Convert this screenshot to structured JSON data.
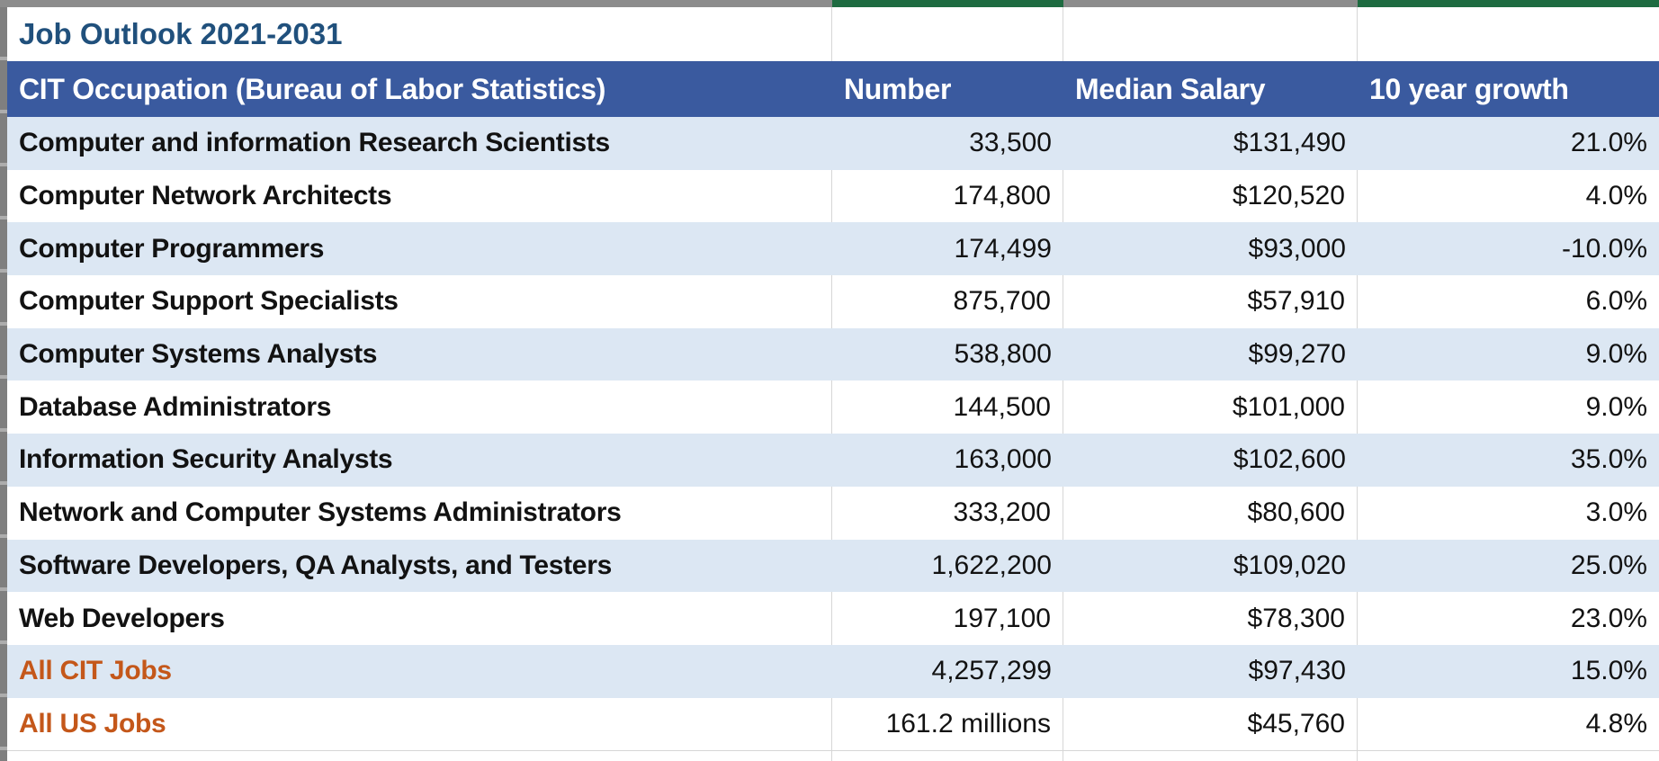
{
  "sheet": {
    "title": "Job Outlook 2021-2031",
    "columns": [
      "CIT Occupation (Bureau of Labor Statistics)",
      "Number",
      "Median Salary",
      "10 year growth"
    ],
    "rows": [
      {
        "occupation": "Computer and information Research Scientists",
        "number": "33,500",
        "median_salary": "$131,490",
        "growth": "21.0%",
        "emphasis": "normal"
      },
      {
        "occupation": "Computer Network Architects",
        "number": "174,800",
        "median_salary": "$120,520",
        "growth": "4.0%",
        "emphasis": "normal"
      },
      {
        "occupation": "Computer Programmers",
        "number": "174,499",
        "median_salary": "$93,000",
        "growth": "-10.0%",
        "emphasis": "normal"
      },
      {
        "occupation": "Computer Support Specialists",
        "number": "875,700",
        "median_salary": "$57,910",
        "growth": "6.0%",
        "emphasis": "normal"
      },
      {
        "occupation": "Computer Systems Analysts",
        "number": "538,800",
        "median_salary": "$99,270",
        "growth": "9.0%",
        "emphasis": "normal"
      },
      {
        "occupation": "Database Administrators",
        "number": "144,500",
        "median_salary": "$101,000",
        "growth": "9.0%",
        "emphasis": "normal"
      },
      {
        "occupation": "Information Security Analysts",
        "number": "163,000",
        "median_salary": "$102,600",
        "growth": "35.0%",
        "emphasis": "normal"
      },
      {
        "occupation": "Network and Computer Systems Administrators",
        "number": "333,200",
        "median_salary": "$80,600",
        "growth": "3.0%",
        "emphasis": "normal"
      },
      {
        "occupation": "Software Developers, QA Analysts, and Testers",
        "number": "1,622,200",
        "median_salary": "$109,020",
        "growth": "25.0%",
        "emphasis": "normal"
      },
      {
        "occupation": "Web Developers",
        "number": "197,100",
        "median_salary": "$78,300",
        "growth": "23.0%",
        "emphasis": "normal"
      },
      {
        "occupation": "All CIT Jobs",
        "number": "4,257,299",
        "median_salary": "$97,430",
        "growth": "15.0%",
        "emphasis": "total"
      },
      {
        "occupation": "All US Jobs",
        "number": "161.2 millions",
        "median_salary": "$45,760",
        "growth": "4.8%",
        "emphasis": "total"
      }
    ]
  },
  "colors": {
    "header_bg": "#3A5A9F",
    "band_bg": "#DCE7F3",
    "title_text": "#20507C",
    "total_text": "#C4571A",
    "top_green": "#1E6B41",
    "top_gray": "#8C8C8C",
    "gridline": "#D6D6D6",
    "gutter": "#7F7F7F"
  }
}
